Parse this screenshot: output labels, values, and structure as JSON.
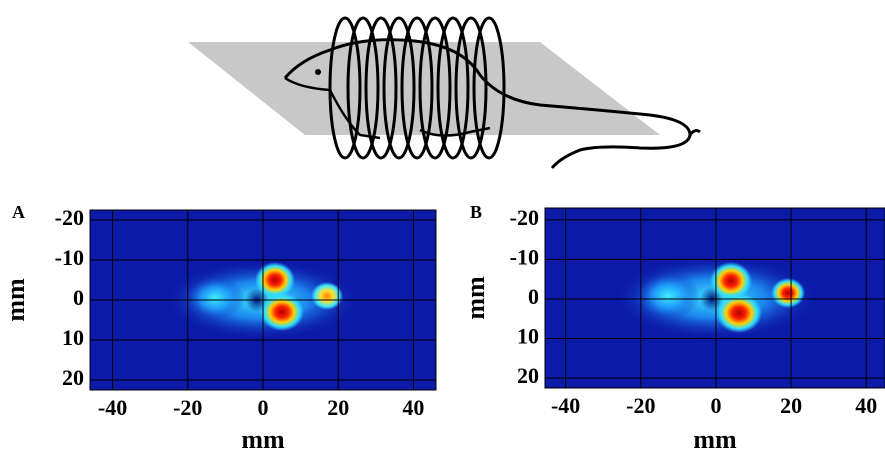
{
  "chart_data": [
    {
      "type": "heatmap",
      "panel_label": "A",
      "xlabel": "mm",
      "ylabel": "mm",
      "xlim": [
        -46,
        46
      ],
      "ylim": [
        22.5,
        -22.5
      ],
      "xticks": [
        -40,
        -20,
        0,
        20,
        40
      ],
      "yticks": [
        -20,
        -10,
        0,
        10,
        20
      ],
      "grid": true
    },
    {
      "type": "heatmap",
      "panel_label": "B",
      "xlabel": "mm",
      "ylabel": "mm",
      "xlim": [
        -45.5,
        45
      ],
      "ylim": [
        22.5,
        -23
      ],
      "xticks": [
        -40,
        -20,
        0,
        20,
        40
      ],
      "yticks": [
        -20,
        -10,
        0,
        10,
        20
      ],
      "grid": true
    }
  ]
}
